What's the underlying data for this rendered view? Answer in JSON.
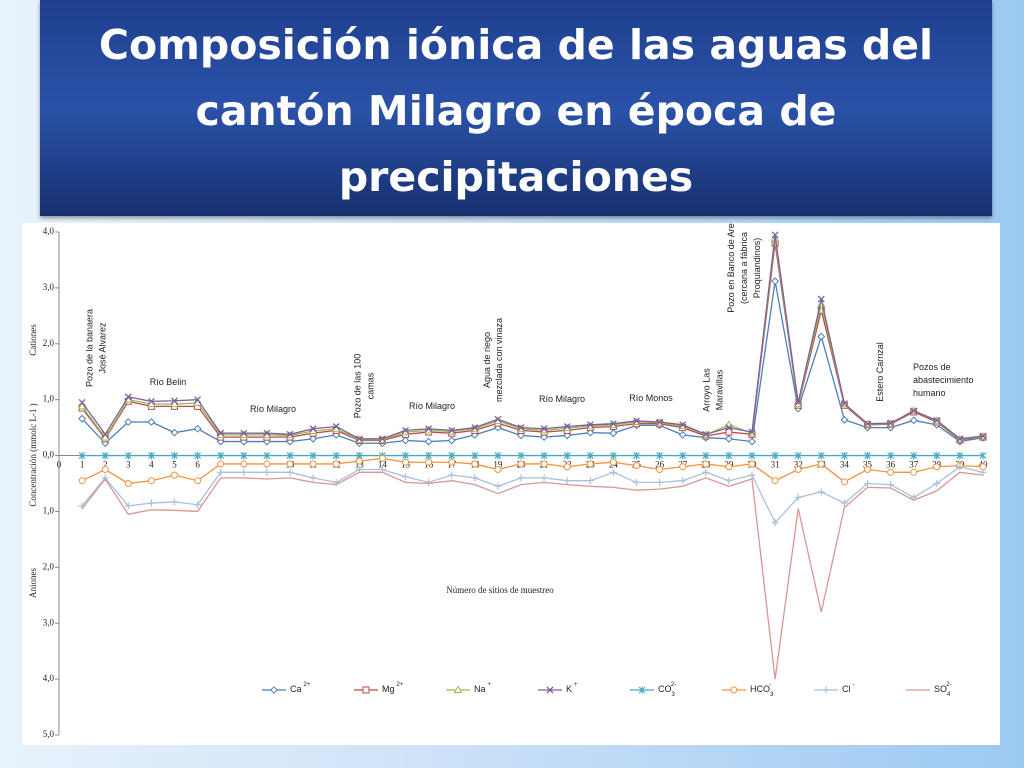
{
  "header": {
    "title_lines": [
      "Composición iónica de las aguas del",
      "cantón Milagro en época de",
      "precipitaciones"
    ]
  },
  "chart_data": {
    "type": "line",
    "y_label": "Concentración (mmolc L-1 )",
    "y_label_top": "Cationes",
    "y_label_bottom": "Aniones",
    "x_label": "Número  de sitios de muestreo",
    "xlim": [
      0,
      40
    ],
    "xticks": [
      0,
      1,
      2,
      3,
      4,
      5,
      6,
      7,
      8,
      9,
      10,
      11,
      12,
      13,
      14,
      15,
      16,
      17,
      18,
      19,
      20,
      21,
      22,
      23,
      24,
      25,
      26,
      27,
      28,
      29,
      30,
      31,
      32,
      33,
      34,
      35,
      36,
      37,
      38,
      39,
      40
    ],
    "ylim": [
      -5,
      4
    ],
    "yticks": [
      {
        "value": 4,
        "label": "4,0"
      },
      {
        "value": 3,
        "label": "3,0"
      },
      {
        "value": 2,
        "label": "2,0"
      },
      {
        "value": 1,
        "label": "1,0"
      },
      {
        "value": 0,
        "label": "0,0"
      },
      {
        "value": -1,
        "label": "1,0"
      },
      {
        "value": -2,
        "label": "2,0"
      },
      {
        "value": -3,
        "label": "3,0"
      },
      {
        "value": -4,
        "label": "4,0"
      },
      {
        "value": -5,
        "label": "5,0"
      }
    ],
    "x": [
      1,
      2,
      3,
      4,
      5,
      6,
      7,
      8,
      9,
      10,
      11,
      12,
      13,
      14,
      15,
      16,
      17,
      18,
      19,
      20,
      21,
      22,
      23,
      24,
      25,
      26,
      27,
      28,
      29,
      30,
      31,
      32,
      33,
      34,
      35,
      36,
      37,
      38,
      39,
      40
    ],
    "series": [
      {
        "name": "Ca",
        "sup": "2+",
        "color": "#4a7ebb",
        "marker": "diamond",
        "values": [
          0.66,
          0.22,
          0.6,
          0.6,
          0.41,
          0.48,
          0.25,
          0.25,
          0.25,
          0.25,
          0.3,
          0.37,
          0.22,
          0.22,
          0.27,
          0.25,
          0.27,
          0.37,
          0.5,
          0.36,
          0.33,
          0.36,
          0.41,
          0.4,
          0.54,
          0.54,
          0.37,
          0.32,
          0.3,
          0.25,
          3.12,
          0.84,
          2.13,
          0.64,
          0.5,
          0.5,
          0.63,
          0.55,
          0.25,
          0.32
        ]
      },
      {
        "name": "Mg",
        "sup": "2+",
        "color": "#be4b48",
        "marker": "square",
        "values": [
          0.85,
          0.3,
          0.97,
          0.88,
          0.88,
          0.88,
          0.33,
          0.33,
          0.33,
          0.33,
          0.4,
          0.45,
          0.27,
          0.27,
          0.38,
          0.42,
          0.4,
          0.45,
          0.58,
          0.45,
          0.42,
          0.45,
          0.5,
          0.52,
          0.57,
          0.57,
          0.5,
          0.35,
          0.42,
          0.38,
          3.8,
          0.9,
          2.6,
          0.9,
          0.55,
          0.56,
          0.78,
          0.6,
          0.28,
          0.33
        ]
      },
      {
        "name": "Na",
        "sup": "+",
        "color": "#98b954",
        "marker": "triangle",
        "values": [
          0.88,
          0.32,
          1.0,
          0.92,
          0.92,
          0.94,
          0.37,
          0.37,
          0.37,
          0.36,
          0.44,
          0.48,
          0.28,
          0.28,
          0.42,
          0.45,
          0.43,
          0.48,
          0.62,
          0.48,
          0.45,
          0.49,
          0.53,
          0.55,
          0.6,
          0.59,
          0.53,
          0.37,
          0.55,
          0.4,
          3.88,
          0.92,
          2.7,
          0.92,
          0.56,
          0.57,
          0.8,
          0.62,
          0.29,
          0.34
        ]
      },
      {
        "name": "K",
        "sup": "+",
        "color": "#7d60a0",
        "marker": "x",
        "values": [
          0.95,
          0.38,
          1.05,
          0.97,
          0.98,
          1.0,
          0.4,
          0.4,
          0.4,
          0.38,
          0.48,
          0.52,
          0.3,
          0.3,
          0.45,
          0.48,
          0.45,
          0.5,
          0.65,
          0.5,
          0.48,
          0.52,
          0.55,
          0.57,
          0.62,
          0.6,
          0.55,
          0.38,
          0.5,
          0.42,
          3.95,
          0.95,
          2.8,
          0.93,
          0.57,
          0.58,
          0.8,
          0.63,
          0.3,
          0.35
        ]
      },
      {
        "name": "CO",
        "sub": "3",
        "sup": "2-",
        "color": "#46aac5",
        "marker": "star",
        "values": [
          0,
          0,
          0,
          0,
          0,
          0,
          0,
          0,
          0,
          0,
          0,
          0,
          0,
          0,
          0,
          0,
          0,
          0,
          0,
          0,
          0,
          0,
          0,
          0,
          0,
          0,
          0,
          0,
          0,
          0,
          0,
          0,
          0,
          0,
          0,
          0,
          0,
          0,
          0,
          0
        ]
      },
      {
        "name": "HCO",
        "sub": "3",
        "sup": "-",
        "color": "#f69240",
        "marker": "circle",
        "values": [
          -0.45,
          -0.25,
          -0.5,
          -0.45,
          -0.35,
          -0.45,
          -0.15,
          -0.15,
          -0.15,
          -0.15,
          -0.15,
          -0.15,
          -0.1,
          -0.05,
          -0.12,
          -0.12,
          -0.12,
          -0.15,
          -0.25,
          -0.15,
          -0.15,
          -0.2,
          -0.15,
          -0.12,
          -0.18,
          -0.25,
          -0.2,
          -0.15,
          -0.2,
          -0.15,
          -0.45,
          -0.25,
          -0.15,
          -0.47,
          -0.25,
          -0.3,
          -0.3,
          -0.2,
          -0.18,
          -0.2
        ]
      },
      {
        "name": "Cl",
        "sup": "-",
        "color": "#a7c0de",
        "marker": "plus",
        "values": [
          -0.9,
          -0.4,
          -0.9,
          -0.85,
          -0.83,
          -0.88,
          -0.3,
          -0.3,
          -0.3,
          -0.3,
          -0.4,
          -0.48,
          -0.25,
          -0.25,
          -0.38,
          -0.48,
          -0.35,
          -0.4,
          -0.55,
          -0.4,
          -0.4,
          -0.45,
          -0.45,
          -0.3,
          -0.48,
          -0.48,
          -0.45,
          -0.3,
          -0.45,
          -0.35,
          -1.2,
          -0.75,
          -0.65,
          -0.85,
          -0.5,
          -0.52,
          -0.75,
          -0.5,
          -0.2,
          -0.3
        ]
      },
      {
        "name": "SO",
        "sub": "4",
        "sup": "2-",
        "color": "#d99694",
        "marker": "none",
        "values": [
          -0.95,
          -0.42,
          -1.05,
          -0.97,
          -0.98,
          -1.0,
          -0.4,
          -0.4,
          -0.42,
          -0.4,
          -0.48,
          -0.52,
          -0.3,
          -0.3,
          -0.48,
          -0.5,
          -0.45,
          -0.52,
          -0.68,
          -0.52,
          -0.48,
          -0.52,
          -0.55,
          -0.57,
          -0.62,
          -0.6,
          -0.55,
          -0.4,
          -0.55,
          -0.42,
          -4.0,
          -0.95,
          -2.8,
          -0.93,
          -0.57,
          -0.58,
          -0.8,
          -0.63,
          -0.3,
          -0.35
        ]
      }
    ],
    "annotations": [
      {
        "lines": [
          "Pozo de la banaera",
          "José Alvarez"
        ]
      },
      {
        "lines": [
          "Río Belin"
        ]
      },
      {
        "lines": [
          "Río Milagro"
        ]
      },
      {
        "lines": [
          "Pozo de las 100",
          "camas"
        ]
      },
      {
        "lines": [
          "Río Milagro"
        ]
      },
      {
        "lines": [
          "Agua de riego",
          "mezclada con vinaza"
        ]
      },
      {
        "lines": [
          "Río Milagro"
        ]
      },
      {
        "lines": [
          "Río Monos"
        ]
      },
      {
        "lines": [
          "Arroyo Las",
          "Maravillas"
        ]
      },
      {
        "lines": [
          "Pozo en Banco de Are",
          "(cercana a fábrica",
          "Proquiandinos)"
        ]
      },
      {
        "lines": [
          "Estero Carrizal"
        ]
      },
      {
        "lines": [
          "Pozos de",
          "abastecimiento",
          "humano"
        ]
      }
    ]
  }
}
